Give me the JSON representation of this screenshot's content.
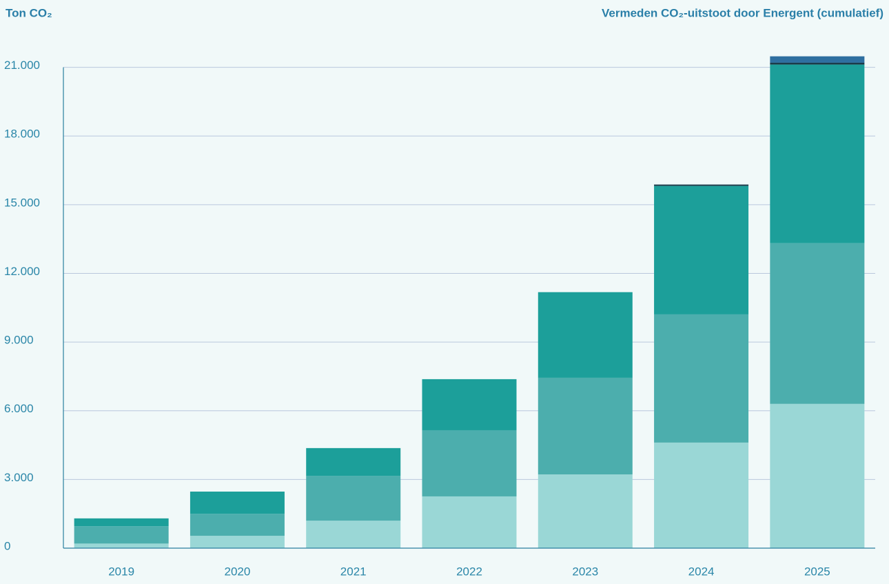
{
  "chart_data": {
    "type": "stacked_bar",
    "title": "Vermeden CO₂-uitstoot door Energent (cumulatief)",
    "y_label": "Ton CO₂",
    "categories": [
      "2019",
      "2020",
      "2021",
      "2022",
      "2023",
      "2024",
      "2025"
    ],
    "series": [
      {
        "color": "#9ad7d6",
        "values": [
          200,
          540,
          1200,
          2260,
          3220,
          4610,
          6300
        ]
      },
      {
        "color": "#4caead",
        "values": [
          760,
          960,
          1960,
          2890,
          4220,
          5600,
          7020
        ]
      },
      {
        "color": "#1c9f9a",
        "values": [
          340,
          970,
          1210,
          2230,
          3740,
          5610,
          7800
        ]
      },
      {
        "color": "#1b3b4a",
        "values": [
          0,
          0,
          0,
          0,
          0,
          60,
          80
        ]
      },
      {
        "color": "#2e6fa0",
        "values": [
          0,
          0,
          0,
          0,
          0,
          0,
          280
        ]
      }
    ],
    "ylim": [
      0,
      21500
    ],
    "yticks": [
      0,
      {
        "value": 3000,
        "label": "3.000"
      },
      {
        "value": 6000,
        "label": "6.000"
      },
      {
        "value": 9000,
        "label": "9.000"
      },
      {
        "value": 12000,
        "label": "12.000"
      },
      {
        "value": 15000,
        "label": "15.000"
      },
      {
        "value": 18000,
        "label": "18.000"
      },
      {
        "value": 21000,
        "label": "21.000"
      }
    ],
    "grid": true
  }
}
